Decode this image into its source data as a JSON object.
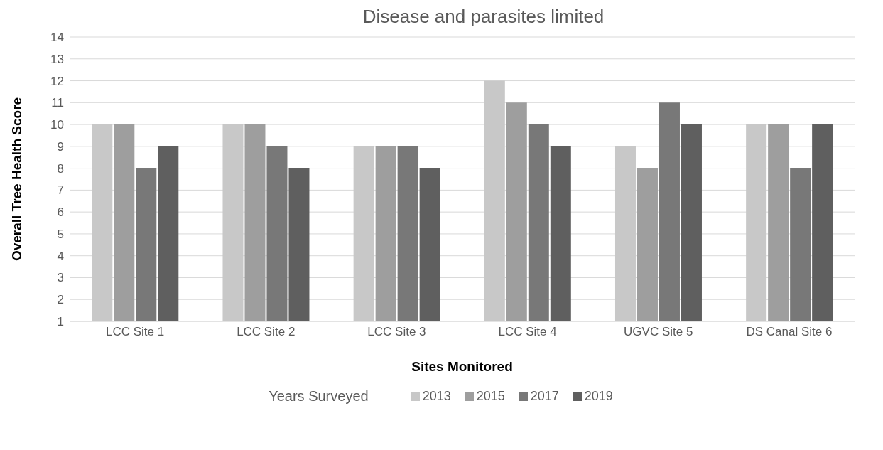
{
  "chart_data": {
    "type": "bar",
    "title": "Disease and parasites limited",
    "xlabel": "Sites Monitored",
    "ylabel": "Overall Tree Health Score",
    "legend_title": "Years Surveyed",
    "categories": [
      "LCC Site 1",
      "LCC Site 2",
      "LCC Site 3",
      "LCC Site 4",
      "UGVC Site 5",
      "DS Canal Site 6"
    ],
    "series": [
      {
        "name": "2013",
        "color": "#c8c8c8",
        "values": [
          10,
          10,
          9,
          12,
          9,
          10
        ]
      },
      {
        "name": "2015",
        "color": "#9e9e9e",
        "values": [
          10,
          10,
          9,
          11,
          8,
          10
        ]
      },
      {
        "name": "2017",
        "color": "#787878",
        "values": [
          8,
          9,
          9,
          10,
          11,
          8
        ]
      },
      {
        "name": "2019",
        "color": "#5f5f5f",
        "values": [
          9,
          8,
          8,
          9,
          10,
          10
        ]
      }
    ],
    "ylim": [
      1,
      14
    ],
    "yticks": [
      1,
      2,
      3,
      4,
      5,
      6,
      7,
      8,
      9,
      10,
      11,
      12,
      13,
      14
    ],
    "grid": "y",
    "legend": "bottom"
  }
}
